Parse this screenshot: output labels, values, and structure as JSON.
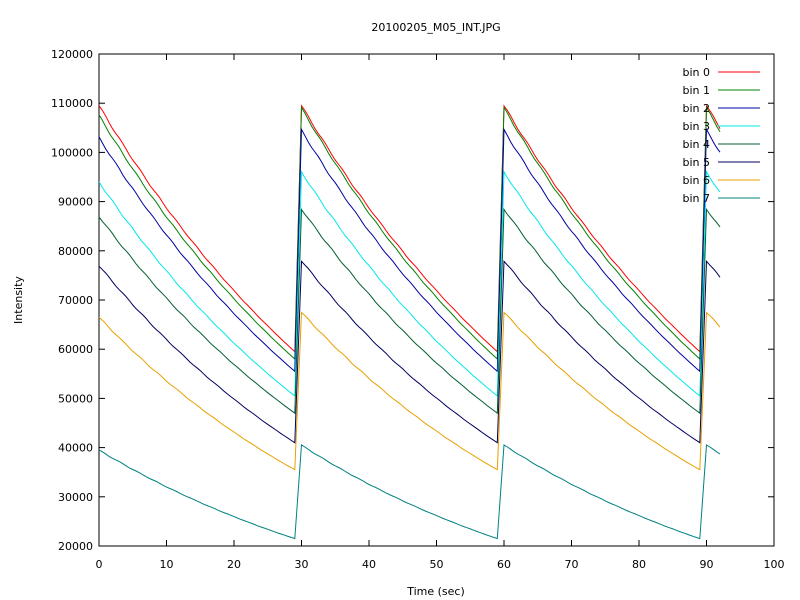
{
  "chart_data": {
    "type": "line",
    "title": "20100205_M05_INT.JPG",
    "xlabel": "Time (sec)",
    "ylabel": "Intensity",
    "xlim": [
      0,
      100
    ],
    "ylim": [
      20000,
      120000
    ],
    "xticks": [
      0,
      10,
      20,
      30,
      40,
      50,
      60,
      70,
      80,
      90,
      100
    ],
    "yticks": [
      20000,
      30000,
      40000,
      50000,
      60000,
      70000,
      80000,
      90000,
      100000,
      110000,
      120000
    ],
    "grid": false,
    "legend_position": "top-right",
    "cycle_starts": [
      0,
      30,
      60,
      90
    ],
    "cycle_length": 29,
    "x_end": 92,
    "series": [
      {
        "name": "bin 0",
        "color": "#ff0000",
        "start": 109500,
        "first_cycle_start": 109500,
        "end": 59500
      },
      {
        "name": "bin 1",
        "color": "#008000",
        "start": 109000,
        "first_cycle_start": 107500,
        "end": 58000
      },
      {
        "name": "bin 2",
        "color": "#0000a0",
        "start": 104500,
        "first_cycle_start": 103000,
        "end": 55500
      },
      {
        "name": "bin 3",
        "color": "#00e8e8",
        "start": 96000,
        "first_cycle_start": 94000,
        "end": 50500
      },
      {
        "name": "bin 4",
        "color": "#006030",
        "start": 88500,
        "first_cycle_start": 87000,
        "end": 47000
      },
      {
        "name": "bin 5",
        "color": "#000060",
        "start": 78000,
        "first_cycle_start": 77000,
        "end": 41000
      },
      {
        "name": "bin 6",
        "color": "#e8a000",
        "start": 67500,
        "first_cycle_start": 66500,
        "end": 35500
      },
      {
        "name": "bin 7",
        "color": "#008080",
        "start": 40500,
        "first_cycle_start": 39500,
        "end": 21500
      }
    ]
  }
}
